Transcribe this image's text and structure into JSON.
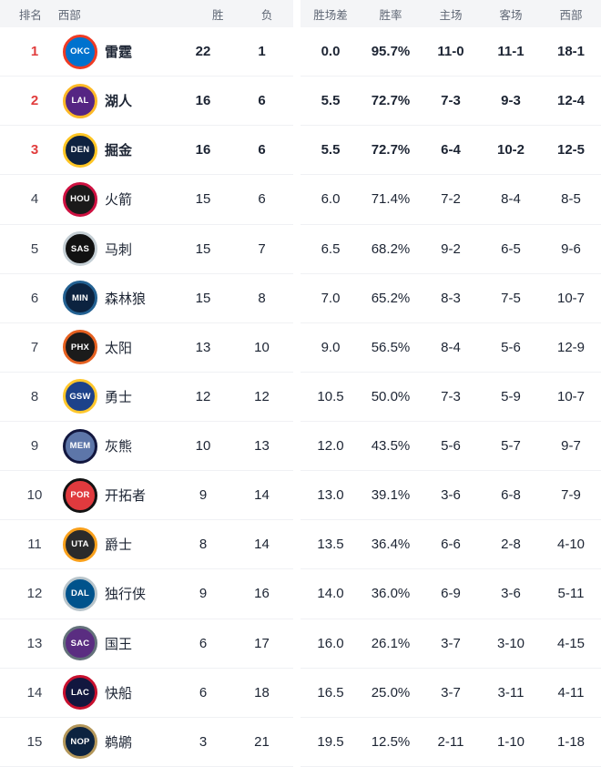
{
  "columns": {
    "rank": "排名",
    "team": "西部",
    "wins": "胜",
    "losses": "负",
    "gb": "胜场差",
    "pct": "胜率",
    "home": "主场",
    "away": "客场",
    "conf": "西部"
  },
  "colors": {
    "rank_top3": "#e13c3c",
    "header_bg": "#f4f5f7",
    "header_text": "#5f6775",
    "value_text": "#1c2433",
    "row_divider": "#f0f1f4"
  },
  "standings": [
    {
      "rank": "1",
      "team": "雷霆",
      "abbr": "OKC",
      "logo": "thunder-logo",
      "c1": "#0072ce",
      "c2": "#ef3b24",
      "wins": "22",
      "losses": "1",
      "gb": "0.0",
      "pct": "95.7%",
      "home": "11-0",
      "away": "11-1",
      "conf": "18-1",
      "top": true
    },
    {
      "rank": "2",
      "team": "湖人",
      "abbr": "LAL",
      "logo": "lakers-logo",
      "c1": "#552583",
      "c2": "#fdb927",
      "wins": "16",
      "losses": "6",
      "gb": "5.5",
      "pct": "72.7%",
      "home": "7-3",
      "away": "9-3",
      "conf": "12-4",
      "top": true
    },
    {
      "rank": "3",
      "team": "掘金",
      "abbr": "DEN",
      "logo": "nuggets-logo",
      "c1": "#0e2240",
      "c2": "#fec524",
      "wins": "16",
      "losses": "6",
      "gb": "5.5",
      "pct": "72.7%",
      "home": "6-4",
      "away": "10-2",
      "conf": "12-5",
      "top": true
    },
    {
      "rank": "4",
      "team": "火箭",
      "abbr": "HOU",
      "logo": "rockets-logo",
      "c1": "#1a1a1a",
      "c2": "#ce1141",
      "wins": "15",
      "losses": "6",
      "gb": "6.0",
      "pct": "71.4%",
      "home": "7-2",
      "away": "8-4",
      "conf": "8-5",
      "top": false
    },
    {
      "rank": "5",
      "team": "马刺",
      "abbr": "SAS",
      "logo": "spurs-logo",
      "c1": "#111111",
      "c2": "#c4ced4",
      "wins": "15",
      "losses": "7",
      "gb": "6.5",
      "pct": "68.2%",
      "home": "9-2",
      "away": "6-5",
      "conf": "9-6",
      "top": false
    },
    {
      "rank": "6",
      "team": "森林狼",
      "abbr": "MIN",
      "logo": "timberwolves-logo",
      "c1": "#0c2340",
      "c2": "#236192",
      "wins": "15",
      "losses": "8",
      "gb": "7.0",
      "pct": "65.2%",
      "home": "8-3",
      "away": "7-5",
      "conf": "10-7",
      "top": false
    },
    {
      "rank": "7",
      "team": "太阳",
      "abbr": "PHX",
      "logo": "suns-logo",
      "c1": "#1b1b1b",
      "c2": "#e56020",
      "wins": "13",
      "losses": "10",
      "gb": "9.0",
      "pct": "56.5%",
      "home": "8-4",
      "away": "5-6",
      "conf": "12-9",
      "top": false
    },
    {
      "rank": "8",
      "team": "勇士",
      "abbr": "GSW",
      "logo": "warriors-logo",
      "c1": "#1d428a",
      "c2": "#ffc72c",
      "wins": "12",
      "losses": "12",
      "gb": "10.5",
      "pct": "50.0%",
      "home": "7-3",
      "away": "5-9",
      "conf": "10-7",
      "top": false
    },
    {
      "rank": "9",
      "team": "灰熊",
      "abbr": "MEM",
      "logo": "grizzlies-logo",
      "c1": "#5d76a9",
      "c2": "#12173f",
      "wins": "10",
      "losses": "13",
      "gb": "12.0",
      "pct": "43.5%",
      "home": "5-6",
      "away": "5-7",
      "conf": "9-7",
      "top": false
    },
    {
      "rank": "10",
      "team": "开拓者",
      "abbr": "POR",
      "logo": "trailblazers-logo",
      "c1": "#e03a3e",
      "c2": "#121212",
      "wins": "9",
      "losses": "14",
      "gb": "13.0",
      "pct": "39.1%",
      "home": "3-6",
      "away": "6-8",
      "conf": "7-9",
      "top": false
    },
    {
      "rank": "11",
      "team": "爵士",
      "abbr": "UTA",
      "logo": "jazz-logo",
      "c1": "#2b2b2b",
      "c2": "#f9a01b",
      "wins": "8",
      "losses": "14",
      "gb": "13.5",
      "pct": "36.4%",
      "home": "6-6",
      "away": "2-8",
      "conf": "4-10",
      "top": false
    },
    {
      "rank": "12",
      "team": "独行侠",
      "abbr": "DAL",
      "logo": "mavericks-logo",
      "c1": "#00538c",
      "c2": "#b8c4ca",
      "wins": "9",
      "losses": "16",
      "gb": "14.0",
      "pct": "36.0%",
      "home": "6-9",
      "away": "3-6",
      "conf": "5-11",
      "top": false
    },
    {
      "rank": "13",
      "team": "国王",
      "abbr": "SAC",
      "logo": "kings-logo",
      "c1": "#5a2d81",
      "c2": "#63727a",
      "wins": "6",
      "losses": "17",
      "gb": "16.0",
      "pct": "26.1%",
      "home": "3-7",
      "away": "3-10",
      "conf": "4-15",
      "top": false
    },
    {
      "rank": "14",
      "team": "快船",
      "abbr": "LAC",
      "logo": "clippers-logo",
      "c1": "#12173f",
      "c2": "#c8102e",
      "wins": "6",
      "losses": "18",
      "gb": "16.5",
      "pct": "25.0%",
      "home": "3-7",
      "away": "3-11",
      "conf": "4-11",
      "top": false
    },
    {
      "rank": "15",
      "team": "鹈鹕",
      "abbr": "NOP",
      "logo": "pelicans-logo",
      "c1": "#0c2340",
      "c2": "#b4975a",
      "wins": "3",
      "losses": "21",
      "gb": "19.5",
      "pct": "12.5%",
      "home": "2-11",
      "away": "1-10",
      "conf": "1-18",
      "top": false
    }
  ]
}
